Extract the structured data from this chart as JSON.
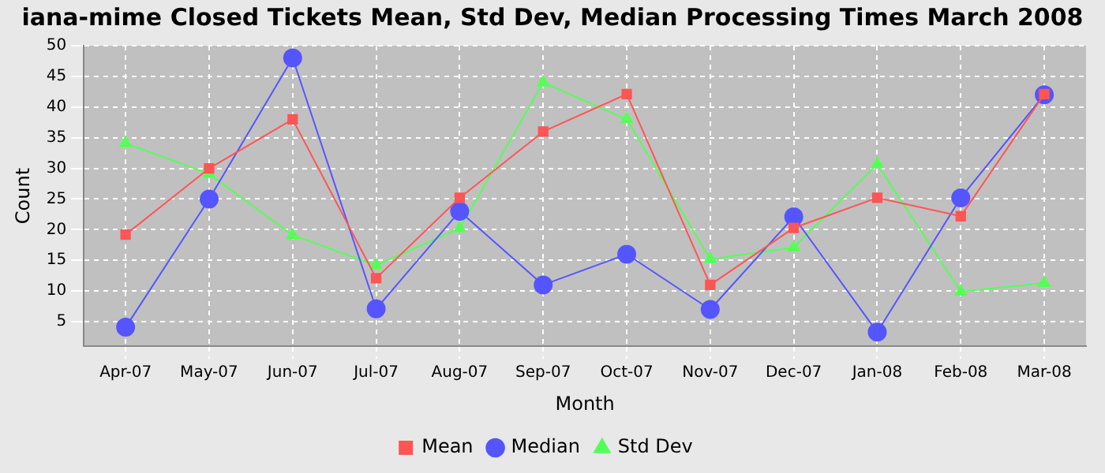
{
  "chart_data": {
    "type": "line",
    "title": "iana-mime Closed Tickets Mean, Std Dev, Median Processing Times March 2008",
    "xlabel": "Month",
    "ylabel": "Count",
    "categories": [
      "Apr-07",
      "May-07",
      "Jun-07",
      "Jul-07",
      "Aug-07",
      "Sep-07",
      "Oct-07",
      "Nov-07",
      "Dec-07",
      "Jan-08",
      "Feb-08",
      "Mar-08"
    ],
    "series": [
      {
        "name": "Mean",
        "color": "#ff5555",
        "marker": "square",
        "values": [
          19.2,
          30,
          38,
          12.1,
          25.2,
          36,
          42.1,
          11,
          20.3,
          25.2,
          22.2,
          42.1
        ]
      },
      {
        "name": "Median",
        "color": "#5555ff",
        "marker": "circle",
        "values": [
          4.1,
          25,
          48,
          7.1,
          23,
          11,
          16,
          7,
          22.1,
          3.3,
          25.2,
          42
        ]
      },
      {
        "name": "Std Dev",
        "color": "#55ff55",
        "marker": "triangle",
        "values": [
          34.1,
          29.1,
          19.1,
          14.2,
          20.2,
          44,
          38,
          15.2,
          17.1,
          30.7,
          9.9,
          11.3
        ]
      }
    ],
    "ylim": [
      1,
      50
    ],
    "yticks": [
      5,
      10,
      15,
      20,
      25,
      30,
      35,
      40,
      45,
      50
    ],
    "grid": true,
    "legend": "bottom",
    "line_style": "solid"
  }
}
